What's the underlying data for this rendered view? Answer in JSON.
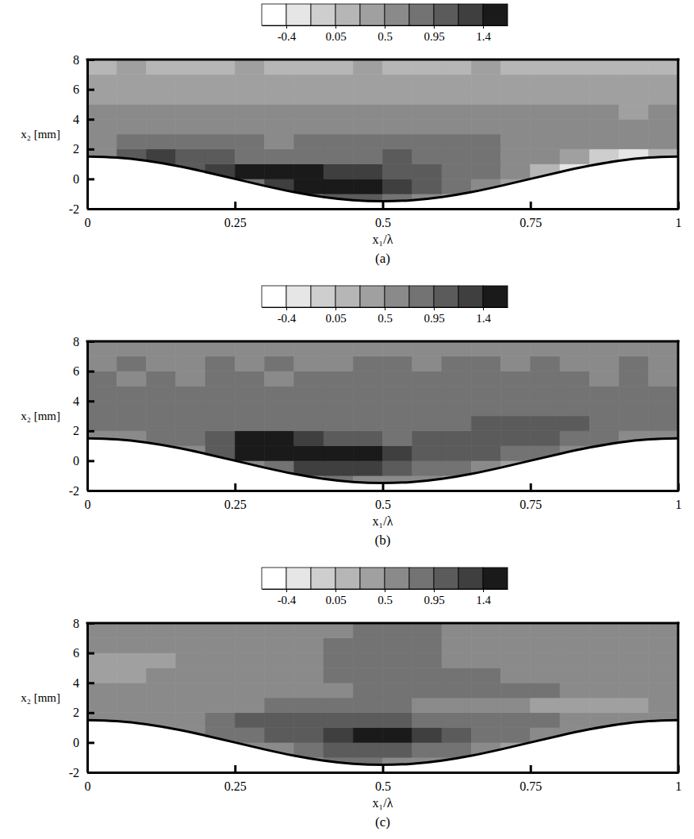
{
  "chart_data": [
    {
      "type": "heatmap",
      "title": "(a)",
      "x_label": "x₁/λ",
      "y_label": "x₂ [mm]",
      "xlim": [
        0,
        1
      ],
      "xticks": [
        0,
        0.25,
        0.5,
        0.75,
        1
      ],
      "ylim": [
        -2,
        8
      ],
      "yticks": [
        -2,
        0,
        2,
        4,
        6,
        8
      ],
      "x": [
        0.025,
        0.075,
        0.125,
        0.175,
        0.225,
        0.275,
        0.325,
        0.375,
        0.425,
        0.475,
        0.525,
        0.575,
        0.625,
        0.675,
        0.725,
        0.775,
        0.825,
        0.875,
        0.925,
        0.975
      ],
      "y": [
        -1.5,
        -0.5,
        0.5,
        1.5,
        2.5,
        3.5,
        4.5,
        5.5,
        6.5,
        7.5
      ],
      "z": [
        [
          null,
          null,
          null,
          null,
          null,
          null,
          null,
          0.9,
          1.1,
          1.0,
          0.8,
          0.6,
          0.4,
          null,
          null,
          null,
          null,
          null,
          null,
          null
        ],
        [
          null,
          null,
          null,
          null,
          null,
          0.9,
          1.3,
          1.45,
          1.5,
          1.45,
          1.3,
          1.0,
          0.8,
          0.6,
          0.3,
          null,
          null,
          null,
          null,
          null
        ],
        [
          null,
          null,
          0.7,
          1.1,
          1.3,
          1.45,
          1.5,
          1.4,
          1.3,
          1.2,
          1.1,
          1.0,
          0.9,
          0.8,
          0.5,
          0.1,
          -0.2,
          -0.3,
          null,
          null
        ],
        [
          0.7,
          1.0,
          1.2,
          1.1,
          1.0,
          0.9,
          0.9,
          0.9,
          0.85,
          0.9,
          0.95,
          0.9,
          0.85,
          0.8,
          0.7,
          0.5,
          0.3,
          0.0,
          -0.3,
          0.2
        ],
        [
          0.7,
          0.8,
          0.85,
          0.8,
          0.75,
          0.75,
          0.7,
          0.75,
          0.8,
          0.8,
          0.85,
          0.8,
          0.75,
          0.75,
          0.7,
          0.7,
          0.65,
          0.6,
          0.6,
          0.6
        ],
        [
          0.6,
          0.65,
          0.6,
          0.65,
          0.6,
          0.7,
          0.65,
          0.6,
          0.65,
          0.7,
          0.65,
          0.7,
          0.6,
          0.65,
          0.6,
          0.6,
          0.55,
          0.6,
          0.55,
          0.55
        ],
        [
          0.5,
          0.55,
          0.5,
          0.55,
          0.5,
          0.5,
          0.55,
          0.5,
          0.55,
          0.5,
          0.5,
          0.55,
          0.5,
          0.5,
          0.5,
          0.55,
          0.5,
          0.5,
          0.45,
          0.5
        ],
        [
          0.45,
          0.4,
          0.45,
          0.4,
          0.45,
          0.4,
          0.45,
          0.4,
          0.4,
          0.45,
          0.4,
          0.45,
          0.4,
          0.45,
          0.4,
          0.45,
          0.4,
          0.4,
          0.45,
          0.4
        ],
        [
          0.35,
          0.3,
          0.35,
          0.3,
          0.35,
          0.3,
          0.3,
          0.35,
          0.3,
          0.35,
          0.3,
          0.35,
          0.3,
          0.3,
          0.35,
          0.3,
          0.35,
          0.3,
          0.3,
          0.35
        ],
        [
          0.25,
          0.3,
          0.25,
          0.2,
          0.25,
          0.3,
          0.25,
          0.2,
          0.25,
          0.3,
          0.25,
          0.2,
          0.25,
          0.3,
          0.25,
          0.2,
          0.25,
          0.25,
          0.2,
          0.25
        ]
      ],
      "colorbar": {
        "range": [
          -0.625,
          1.625
        ],
        "ticks": [
          -0.4,
          0.05,
          0.5,
          0.95,
          1.4
        ],
        "levels": [
          -0.625,
          -0.4,
          -0.175,
          0.05,
          0.275,
          0.5,
          0.725,
          0.95,
          1.175,
          1.4,
          1.625
        ],
        "colors": [
          "#ffffff",
          "#e6e6e6",
          "#cecece",
          "#b6b6b6",
          "#a0a0a0",
          "#8a8a8a",
          "#737373",
          "#5b5b5b",
          "#3f3f3f",
          "#1a1a1a"
        ]
      },
      "wall": {
        "x": [
          0,
          0.05,
          0.1,
          0.15,
          0.2,
          0.25,
          0.3,
          0.35,
          0.4,
          0.45,
          0.5,
          0.55,
          0.6,
          0.65,
          0.7,
          0.75,
          0.8,
          0.85,
          0.9,
          0.95,
          1
        ],
        "y": [
          1.5,
          1.427,
          1.214,
          0.882,
          0.464,
          0,
          -0.464,
          -0.882,
          -1.214,
          -1.427,
          -1.5,
          -1.427,
          -1.214,
          -0.882,
          -0.464,
          0,
          0.464,
          0.882,
          1.214,
          1.427,
          1.5
        ]
      }
    },
    {
      "type": "heatmap",
      "title": "(b)",
      "x_label": "x₁/λ",
      "y_label": "x₂ [mm]",
      "xlim": [
        0,
        1
      ],
      "xticks": [
        0,
        0.25,
        0.5,
        0.75,
        1
      ],
      "ylim": [
        -2,
        8
      ],
      "yticks": [
        -2,
        0,
        2,
        4,
        6,
        8
      ],
      "x": [
        0.025,
        0.075,
        0.125,
        0.175,
        0.225,
        0.275,
        0.325,
        0.375,
        0.425,
        0.475,
        0.525,
        0.575,
        0.625,
        0.675,
        0.725,
        0.775,
        0.825,
        0.875,
        0.925,
        0.975
      ],
      "y": [
        -1.5,
        -0.5,
        0.5,
        1.5,
        2.5,
        3.5,
        4.5,
        5.5,
        6.5,
        7.5
      ],
      "z": [
        [
          null,
          null,
          null,
          null,
          null,
          null,
          null,
          0.7,
          0.8,
          0.7,
          0.6,
          0.5,
          0.4,
          null,
          null,
          null,
          null,
          null,
          null,
          null
        ],
        [
          null,
          null,
          null,
          null,
          null,
          0.6,
          0.9,
          1.2,
          1.3,
          1.2,
          1.1,
          0.9,
          0.8,
          0.6,
          0.4,
          null,
          null,
          null,
          null,
          null
        ],
        [
          null,
          null,
          0.5,
          0.7,
          1.0,
          1.45,
          1.55,
          1.55,
          1.5,
          1.45,
          1.3,
          1.1,
          1.0,
          0.95,
          0.9,
          0.8,
          0.5,
          0.3,
          null,
          null
        ],
        [
          0.7,
          0.7,
          0.75,
          0.8,
          1.1,
          1.4,
          1.4,
          1.2,
          1.0,
          0.95,
          0.9,
          0.95,
          1.0,
          1.05,
          1.0,
          0.95,
          0.9,
          0.8,
          0.7,
          0.7
        ],
        [
          0.8,
          0.8,
          0.8,
          0.85,
          0.85,
          0.8,
          0.8,
          0.85,
          0.85,
          0.9,
          0.9,
          0.85,
          0.9,
          0.95,
          1.0,
          1.0,
          0.95,
          0.9,
          0.85,
          0.8
        ],
        [
          0.8,
          0.8,
          0.75,
          0.8,
          0.8,
          0.8,
          0.75,
          0.8,
          0.8,
          0.85,
          0.85,
          0.9,
          0.85,
          0.9,
          0.9,
          0.85,
          0.85,
          0.8,
          0.8,
          0.8
        ],
        [
          0.75,
          0.8,
          0.75,
          0.8,
          0.75,
          0.75,
          0.8,
          0.75,
          0.8,
          0.8,
          0.85,
          0.8,
          0.85,
          0.8,
          0.8,
          0.8,
          0.75,
          0.8,
          0.75,
          0.75
        ],
        [
          0.75,
          0.7,
          0.75,
          0.7,
          0.75,
          0.75,
          0.7,
          0.75,
          0.75,
          0.8,
          0.75,
          0.8,
          0.8,
          0.75,
          0.8,
          0.75,
          0.75,
          0.7,
          0.75,
          0.7
        ],
        [
          0.7,
          0.75,
          0.7,
          0.7,
          0.75,
          0.7,
          0.75,
          0.7,
          0.7,
          0.75,
          0.75,
          0.7,
          0.75,
          0.75,
          0.7,
          0.75,
          0.7,
          0.7,
          0.75,
          0.7
        ],
        [
          0.7,
          0.7,
          0.65,
          0.7,
          0.7,
          0.65,
          0.7,
          0.7,
          0.65,
          0.7,
          0.7,
          0.65,
          0.7,
          0.7,
          0.65,
          0.7,
          0.7,
          0.65,
          0.7,
          0.7
        ]
      ],
      "colorbar": {
        "range": [
          -0.625,
          1.625
        ],
        "ticks": [
          -0.4,
          0.05,
          0.5,
          0.95,
          1.4
        ],
        "levels": [
          -0.625,
          -0.4,
          -0.175,
          0.05,
          0.275,
          0.5,
          0.725,
          0.95,
          1.175,
          1.4,
          1.625
        ],
        "colors": [
          "#ffffff",
          "#e6e6e6",
          "#cecece",
          "#b6b6b6",
          "#a0a0a0",
          "#8a8a8a",
          "#737373",
          "#5b5b5b",
          "#3f3f3f",
          "#1a1a1a"
        ]
      },
      "wall": {
        "x": [
          0,
          0.05,
          0.1,
          0.15,
          0.2,
          0.25,
          0.3,
          0.35,
          0.4,
          0.45,
          0.5,
          0.55,
          0.6,
          0.65,
          0.7,
          0.75,
          0.8,
          0.85,
          0.9,
          0.95,
          1
        ],
        "y": [
          1.5,
          1.427,
          1.214,
          0.882,
          0.464,
          0,
          -0.464,
          -0.882,
          -1.214,
          -1.427,
          -1.5,
          -1.427,
          -1.214,
          -0.882,
          -0.464,
          0,
          0.464,
          0.882,
          1.214,
          1.427,
          1.5
        ]
      }
    },
    {
      "type": "heatmap",
      "title": "(c)",
      "x_label": "x₁/λ",
      "y_label": "x₂ [mm]",
      "xlim": [
        0,
        1
      ],
      "xticks": [
        0,
        0.25,
        0.5,
        0.75,
        1
      ],
      "ylim": [
        -2,
        8
      ],
      "yticks": [
        -2,
        0,
        2,
        4,
        6,
        8
      ],
      "x": [
        0.025,
        0.075,
        0.125,
        0.175,
        0.225,
        0.275,
        0.325,
        0.375,
        0.425,
        0.475,
        0.525,
        0.575,
        0.625,
        0.675,
        0.725,
        0.775,
        0.825,
        0.875,
        0.925,
        0.975
      ],
      "y": [
        -1.5,
        -0.5,
        0.5,
        1.5,
        2.5,
        3.5,
        4.5,
        5.5,
        6.5,
        7.5
      ],
      "z": [
        [
          null,
          null,
          null,
          null,
          null,
          null,
          null,
          0.6,
          0.8,
          0.8,
          0.7,
          0.6,
          0.5,
          null,
          null,
          null,
          null,
          null,
          null,
          null
        ],
        [
          null,
          null,
          null,
          null,
          null,
          0.5,
          0.7,
          0.9,
          1.0,
          1.1,
          1.0,
          0.9,
          0.8,
          0.6,
          0.4,
          null,
          null,
          null,
          null,
          null
        ],
        [
          null,
          null,
          0.4,
          0.6,
          0.8,
          0.9,
          0.95,
          1.0,
          1.2,
          1.4,
          1.45,
          1.3,
          1.0,
          0.9,
          0.8,
          0.7,
          0.5,
          0.4,
          null,
          null
        ],
        [
          0.5,
          0.5,
          0.6,
          0.7,
          0.9,
          0.95,
          1.0,
          1.0,
          1.0,
          0.95,
          0.95,
          0.9,
          0.9,
          0.85,
          0.8,
          0.75,
          0.7,
          0.6,
          0.5,
          0.5
        ],
        [
          0.5,
          0.55,
          0.6,
          0.6,
          0.65,
          0.7,
          0.75,
          0.75,
          0.8,
          0.8,
          0.75,
          0.7,
          0.65,
          0.6,
          0.6,
          0.45,
          0.4,
          0.4,
          0.45,
          0.5
        ],
        [
          0.6,
          0.6,
          0.6,
          0.65,
          0.65,
          0.6,
          0.6,
          0.65,
          0.7,
          0.8,
          0.8,
          0.8,
          0.75,
          0.8,
          0.8,
          0.75,
          0.7,
          0.7,
          0.65,
          0.6
        ],
        [
          0.4,
          0.45,
          0.6,
          0.6,
          0.6,
          0.5,
          0.55,
          0.6,
          0.75,
          0.8,
          0.8,
          0.8,
          0.8,
          0.75,
          0.7,
          0.65,
          0.6,
          0.55,
          0.6,
          0.6
        ],
        [
          0.4,
          0.4,
          0.45,
          0.5,
          0.55,
          0.5,
          0.55,
          0.6,
          0.8,
          0.8,
          0.8,
          0.75,
          0.65,
          0.6,
          0.6,
          0.6,
          0.6,
          0.6,
          0.65,
          0.6
        ],
        [
          0.5,
          0.6,
          0.6,
          0.55,
          0.6,
          0.6,
          0.6,
          0.6,
          0.8,
          0.8,
          0.8,
          0.75,
          0.65,
          0.6,
          0.6,
          0.6,
          0.6,
          0.6,
          0.6,
          0.6
        ],
        [
          0.6,
          0.6,
          0.6,
          0.6,
          0.6,
          0.6,
          0.6,
          0.6,
          0.7,
          0.8,
          0.8,
          0.75,
          0.65,
          0.6,
          0.6,
          0.6,
          0.6,
          0.6,
          0.6,
          0.6
        ]
      ],
      "colorbar": {
        "range": [
          -0.625,
          1.625
        ],
        "ticks": [
          -0.4,
          0.05,
          0.5,
          0.95,
          1.4
        ],
        "levels": [
          -0.625,
          -0.4,
          -0.175,
          0.05,
          0.275,
          0.5,
          0.725,
          0.95,
          1.175,
          1.4,
          1.625
        ],
        "colors": [
          "#ffffff",
          "#e6e6e6",
          "#cecece",
          "#b6b6b6",
          "#a0a0a0",
          "#8a8a8a",
          "#737373",
          "#5b5b5b",
          "#3f3f3f",
          "#1a1a1a"
        ]
      },
      "wall": {
        "x": [
          0,
          0.05,
          0.1,
          0.15,
          0.2,
          0.25,
          0.3,
          0.35,
          0.4,
          0.45,
          0.5,
          0.55,
          0.6,
          0.65,
          0.7,
          0.75,
          0.8,
          0.85,
          0.9,
          0.95,
          1
        ],
        "y": [
          1.5,
          1.427,
          1.214,
          0.882,
          0.464,
          0,
          -0.464,
          -0.882,
          -1.214,
          -1.427,
          -1.5,
          -1.427,
          -1.214,
          -0.882,
          -0.464,
          0,
          0.464,
          0.882,
          1.214,
          1.427,
          1.5
        ]
      }
    }
  ]
}
